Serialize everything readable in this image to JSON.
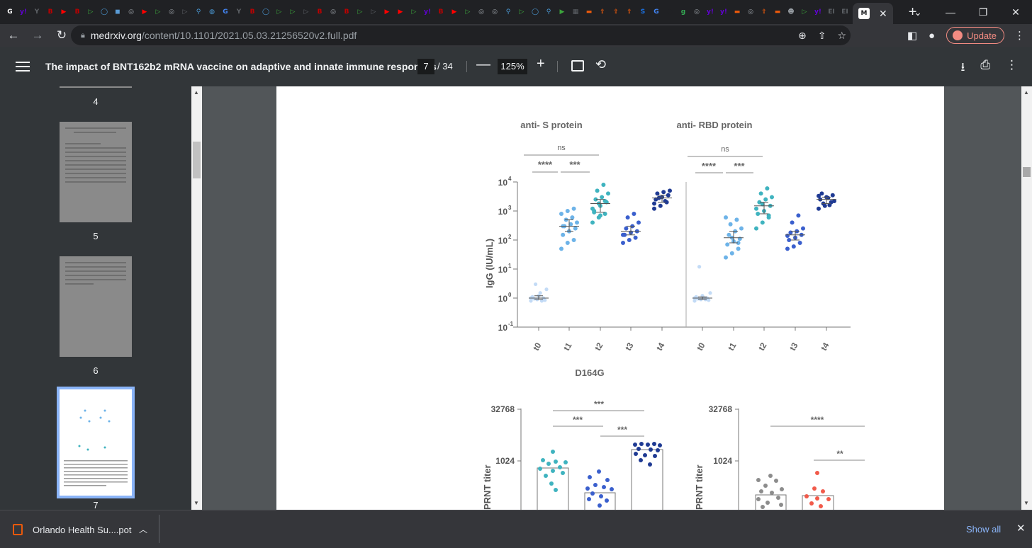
{
  "browser": {
    "tab_favicons": [
      {
        "char": "G",
        "color": "#ffffff"
      },
      {
        "char": "y!",
        "color": "#6001d2"
      },
      {
        "char": "Y",
        "color": "#5f6368"
      },
      {
        "char": "B",
        "color": "#c00000"
      },
      {
        "char": "▶",
        "color": "#ff0000"
      },
      {
        "char": "B",
        "color": "#c00000"
      },
      {
        "char": "▷",
        "color": "#3ca43c"
      },
      {
        "char": "◯",
        "color": "#4b9ad6"
      },
      {
        "char": "◼",
        "color": "#5a9bd4"
      },
      {
        "char": "◎",
        "color": "#9aa0a6"
      },
      {
        "char": "▶",
        "color": "#ff0000"
      },
      {
        "char": "▷",
        "color": "#3ca43c"
      },
      {
        "char": "◎",
        "color": "#9aa0a6"
      },
      {
        "char": "▷",
        "color": "#5f6368"
      },
      {
        "char": "⚲",
        "color": "#4b9ad6"
      },
      {
        "char": "◍",
        "color": "#4b9ad6"
      },
      {
        "char": "G",
        "color": "#4285f4"
      },
      {
        "char": "Y",
        "color": "#5f6368"
      },
      {
        "char": "B",
        "color": "#c00000"
      },
      {
        "char": "◯",
        "color": "#4b9ad6"
      },
      {
        "char": "▷",
        "color": "#3ca43c"
      },
      {
        "char": "▷",
        "color": "#3ca43c"
      },
      {
        "char": "▷",
        "color": "#5f6368"
      },
      {
        "char": "B",
        "color": "#c00000"
      },
      {
        "char": "◎",
        "color": "#9aa0a6"
      },
      {
        "char": "B",
        "color": "#c00000"
      },
      {
        "char": "▷",
        "color": "#3ca43c"
      },
      {
        "char": "▷",
        "color": "#5f6368"
      },
      {
        "char": "▶",
        "color": "#ff0000"
      },
      {
        "char": "▶",
        "color": "#ff0000"
      },
      {
        "char": "▷",
        "color": "#3ca43c"
      },
      {
        "char": "y!",
        "color": "#6001d2"
      },
      {
        "char": "B",
        "color": "#c00000"
      },
      {
        "char": "▶",
        "color": "#ff0000"
      },
      {
        "char": "▷",
        "color": "#3ca43c"
      },
      {
        "char": "◎",
        "color": "#9aa0a6"
      },
      {
        "char": "◎",
        "color": "#9aa0a6"
      },
      {
        "char": "⚲",
        "color": "#4b9ad6"
      },
      {
        "char": "▷",
        "color": "#3ca43c"
      },
      {
        "char": "◯",
        "color": "#4b9ad6"
      },
      {
        "char": "⚲",
        "color": "#4b9ad6"
      },
      {
        "char": "▶",
        "color": "#3ca43c"
      },
      {
        "char": "▦",
        "color": "#5f6368"
      },
      {
        "char": "▬",
        "color": "#e8590c"
      },
      {
        "char": "⇪",
        "color": "#e8590c"
      },
      {
        "char": "⇪",
        "color": "#e8590c"
      },
      {
        "char": "⇪",
        "color": "#e8590c"
      },
      {
        "char": "S",
        "color": "#1a73e8"
      },
      {
        "char": "G",
        "color": "#4285f4"
      },
      {
        "char": "●",
        "color": "#202124"
      },
      {
        "char": "g",
        "color": "#34a853"
      },
      {
        "char": "◎",
        "color": "#9aa0a6"
      },
      {
        "char": "y!",
        "color": "#6001d2"
      },
      {
        "char": "y!",
        "color": "#6001d2"
      },
      {
        "char": "▬",
        "color": "#e8590c"
      },
      {
        "char": "◎",
        "color": "#9aa0a6"
      },
      {
        "char": "⇪",
        "color": "#e8590c"
      },
      {
        "char": "▬",
        "color": "#e8590c"
      },
      {
        "char": "☻",
        "color": "#9aa0a6"
      },
      {
        "char": "▷",
        "color": "#3ca43c"
      },
      {
        "char": "y!",
        "color": "#6001d2"
      },
      {
        "char": "EI",
        "color": "#5f6368"
      },
      {
        "char": "EI",
        "color": "#5f6368"
      }
    ],
    "url_host": "medrxiv.org",
    "url_path": "/content/10.1101/2021.05.03.21256520v2.full.pdf",
    "update_label": "Update"
  },
  "pdf": {
    "title": "The impact of BNT162b2 mRNA vaccine on adaptive and innate immune responses",
    "current_page": "7",
    "total_pages": "/ 34",
    "zoom": "125%"
  },
  "sidebar": {
    "page_labels": [
      "4",
      "5",
      "6",
      "7"
    ]
  },
  "figure": {
    "panel_left_title": "anti- S protein",
    "panel_right_title": "anti- RBD protein",
    "y_axis_label": "IgG (IU/mL)",
    "y_tick_labels": [
      "10",
      "10",
      "10",
      "10",
      "10",
      "10"
    ],
    "y_tick_exponents": [
      "4",
      "3",
      "2",
      "1",
      "0",
      "-1"
    ],
    "x_ticks": [
      "t0",
      "t1",
      "t2",
      "t3",
      "t4"
    ],
    "sig_ns": "ns",
    "sig_four": "****",
    "sig_three": "***",
    "section_title": "D164G",
    "prnt_y_label": "PRNT titer",
    "prnt_ticks": [
      "32768",
      "1024"
    ],
    "prnt_left_sig": [
      "***",
      "***",
      "***"
    ],
    "prnt_right_sig": [
      "****",
      "**"
    ],
    "colors": {
      "t0": "#bcd7f5",
      "t1": "#6db3e8",
      "t2": "#3fb3bf",
      "t3": "#3a5fcd",
      "t4": "#1f3a93",
      "grey": "#8c8c8c",
      "red": "#f15a4a"
    }
  },
  "chart_data": {
    "type": "scatter",
    "yscale": "log",
    "ylim": [
      0.1,
      10000
    ],
    "panels": [
      {
        "title": "anti- S protein",
        "categories": [
          "t0",
          "t1",
          "t2",
          "t3",
          "t4"
        ],
        "series": [
          {
            "values": [
              0.8,
              0.9,
              1.0,
              1.1,
              1.2,
              0.85,
              0.95,
              1.5,
              2.0,
              3.0,
              0.8,
              1.0
            ]
          },
          {
            "values": [
              50,
              80,
              100,
              150,
              200,
              250,
              300,
              350,
              400,
              500,
              600,
              800,
              1000,
              1200,
              300,
              200
            ]
          },
          {
            "values": [
              400,
              600,
              800,
              1000,
              1500,
              2000,
              2500,
              3000,
              4000,
              5000,
              8000,
              1200,
              1800,
              2200,
              900,
              700
            ]
          },
          {
            "values": [
              80,
              100,
              120,
              150,
              180,
              200,
              250,
              300,
              400,
              600,
              800,
              150
            ]
          },
          {
            "values": [
              1200,
              1500,
              2000,
              2500,
              3000,
              3500,
              4000,
              4500,
              5000,
              2800,
              2200,
              1800
            ]
          }
        ]
      },
      {
        "title": "anti- RBD protein",
        "categories": [
          "t0",
          "t1",
          "t2",
          "t3",
          "t4"
        ],
        "series": [
          {
            "values": [
              0.8,
              0.9,
              1.0,
              1.1,
              1.2,
              0.85,
              0.95,
              1.0,
              1.5,
              12,
              0.9,
              1.0
            ]
          },
          {
            "values": [
              25,
              35,
              50,
              70,
              90,
              110,
              150,
              200,
              250,
              350,
              500,
              600,
              120,
              80
            ]
          },
          {
            "values": [
              250,
              400,
              600,
              800,
              1000,
              1500,
              2000,
              2500,
              3000,
              4000,
              6000,
              1200,
              1700,
              700
            ]
          },
          {
            "values": [
              50,
              60,
              80,
              100,
              120,
              150,
              180,
              200,
              250,
              400,
              700,
              140
            ]
          },
          {
            "values": [
              1200,
              1500,
              2000,
              2500,
              3000,
              3500,
              4000,
              2800,
              2200,
              1800,
              1600,
              3300
            ]
          }
        ]
      }
    ]
  },
  "downloads": {
    "file_name": "Orlando Health Su....pot",
    "show_all": "Show all"
  }
}
